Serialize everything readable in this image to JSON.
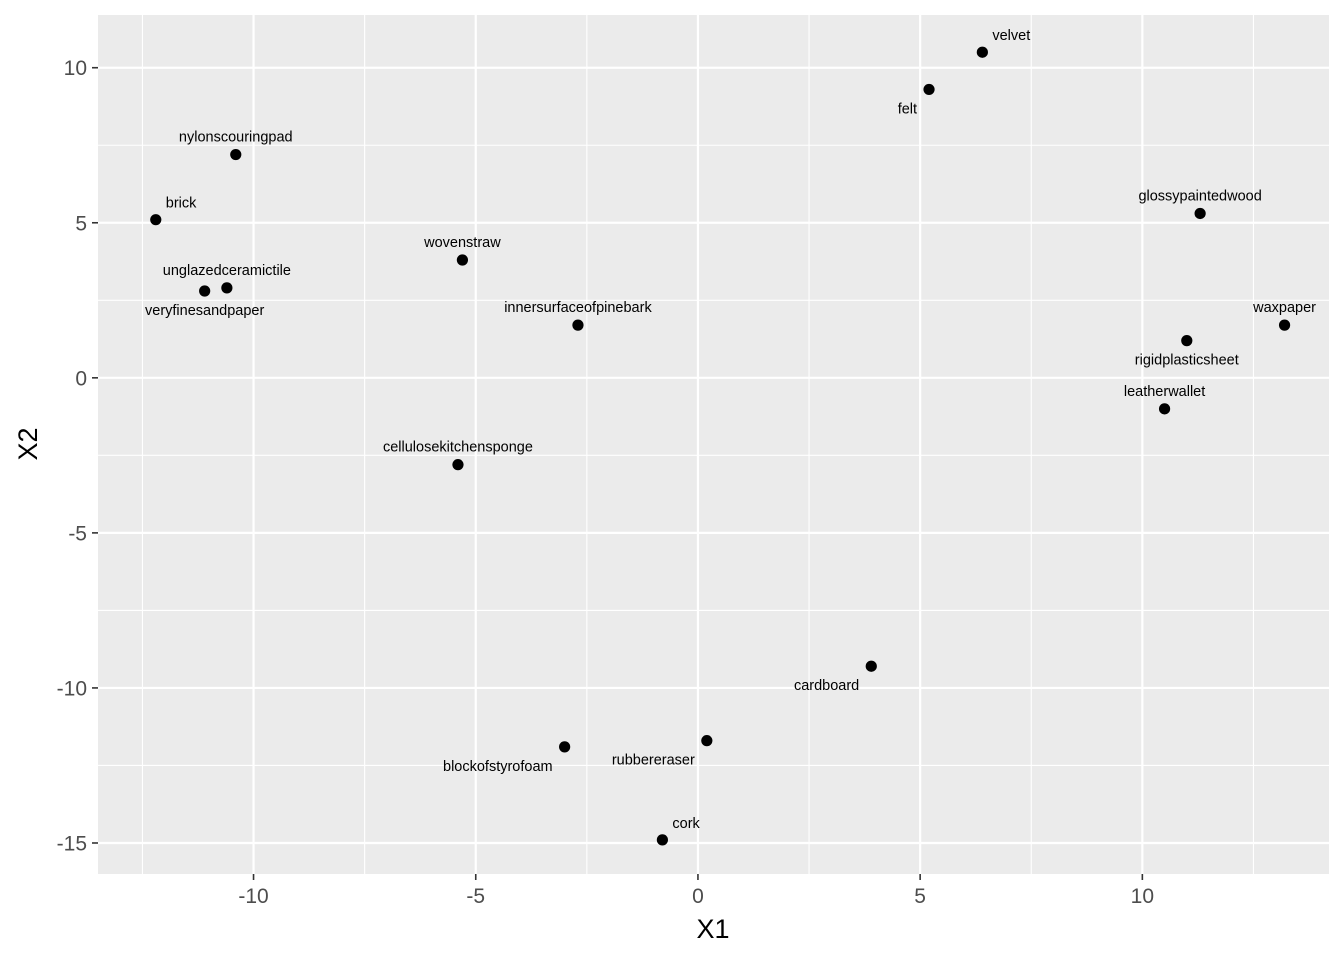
{
  "chart_data": {
    "type": "scatter",
    "title": "",
    "xlabel": "X1",
    "ylabel": "X2",
    "xlim": [
      -13.5,
      14.2
    ],
    "ylim": [
      -16,
      11.7
    ],
    "x_ticks": [
      -10,
      -5,
      0,
      5,
      10
    ],
    "x_tick_labels": [
      "-10",
      "-5",
      "0",
      "5",
      "10"
    ],
    "y_ticks": [
      -15,
      -10,
      -5,
      0,
      5,
      10
    ],
    "y_tick_labels": [
      "-15",
      "-10",
      "-5",
      "0",
      "5",
      "10"
    ],
    "grid": true,
    "colors": {
      "panel": "#ebebeb",
      "grid": "#ffffff",
      "point": "#000000"
    },
    "points": [
      {
        "label": "velvet",
        "x": 6.4,
        "y": 10.5,
        "label_pos": "above-right"
      },
      {
        "label": "felt",
        "x": 5.2,
        "y": 9.3,
        "label_pos": "below-left"
      },
      {
        "label": "nylonscouringpad",
        "x": -10.4,
        "y": 7.2,
        "label_pos": "above"
      },
      {
        "label": "brick",
        "x": -12.2,
        "y": 5.1,
        "label_pos": "above-right"
      },
      {
        "label": "glossypaintedwood",
        "x": 11.3,
        "y": 5.3,
        "label_pos": "above"
      },
      {
        "label": "wovenstraw",
        "x": -5.3,
        "y": 3.8,
        "label_pos": "above"
      },
      {
        "label": "unglazedceramictile",
        "x": -10.6,
        "y": 2.9,
        "label_pos": "above"
      },
      {
        "label": "veryfinesandpaper",
        "x": -11.1,
        "y": 2.8,
        "label_pos": "below"
      },
      {
        "label": "innersurfaceofpinebark",
        "x": -2.7,
        "y": 1.7,
        "label_pos": "above"
      },
      {
        "label": "waxpaper",
        "x": 13.2,
        "y": 1.7,
        "label_pos": "above"
      },
      {
        "label": "rigidplasticsheet",
        "x": 11.0,
        "y": 1.2,
        "label_pos": "below"
      },
      {
        "label": "leatherwallet",
        "x": 10.5,
        "y": -1.0,
        "label_pos": "above"
      },
      {
        "label": "cellulosekitchensponge",
        "x": -5.4,
        "y": -2.8,
        "label_pos": "above"
      },
      {
        "label": "cardboard",
        "x": 3.9,
        "y": -9.3,
        "label_pos": "below-left"
      },
      {
        "label": "rubbereraser",
        "x": 0.2,
        "y": -11.7,
        "label_pos": "below-left"
      },
      {
        "label": "blockofstyrofoam",
        "x": -3.0,
        "y": -11.9,
        "label_pos": "below-left"
      },
      {
        "label": "cork",
        "x": -0.8,
        "y": -14.9,
        "label_pos": "above-right"
      }
    ]
  }
}
